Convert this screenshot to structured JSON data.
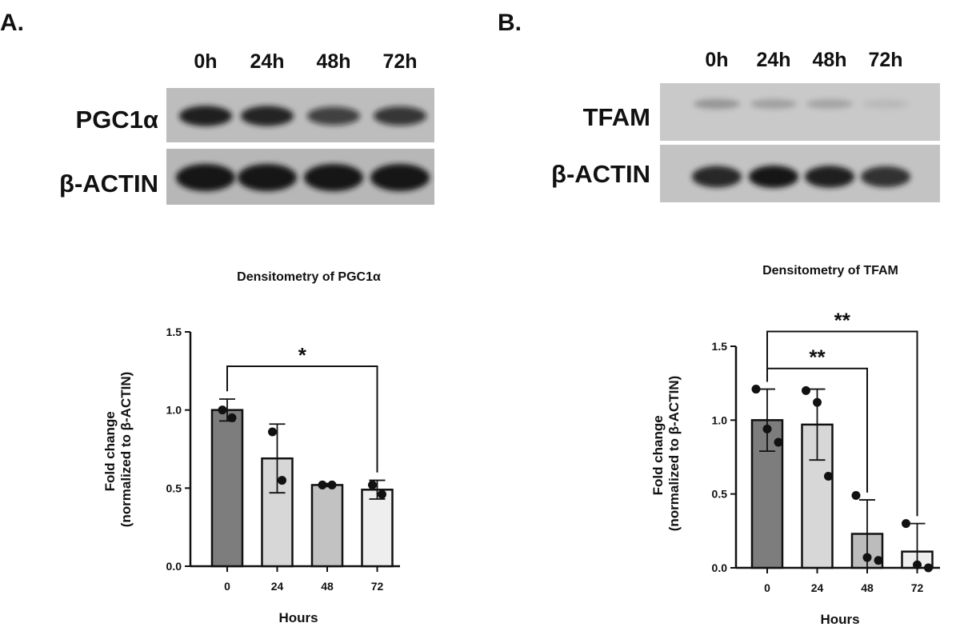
{
  "panels": [
    {
      "label": "A.",
      "blot": {
        "lanes": [
          "0h",
          "24h",
          "48h",
          "72h"
        ],
        "rows": [
          {
            "name": "PGC1α",
            "band_intensity": [
              0.95,
              0.92,
              0.72,
              0.78
            ]
          },
          {
            "name": "β-ACTIN",
            "band_intensity": [
              1.0,
              1.0,
              1.0,
              1.0
            ]
          }
        ]
      }
    },
    {
      "label": "B.",
      "blot": {
        "lanes": [
          "0h",
          "24h",
          "48h",
          "72h"
        ],
        "rows": [
          {
            "name": "TFAM",
            "band_intensity": [
              0.25,
              0.2,
              0.18,
              0.08
            ]
          },
          {
            "name": "β-ACTIN",
            "band_intensity": [
              0.9,
              1.0,
              0.95,
              0.85
            ]
          }
        ]
      }
    }
  ],
  "chart_data": [
    {
      "type": "bar",
      "title": "Densitometry of  PGC1α",
      "xlabel": "Hours",
      "ylabel_lines": [
        "Fold change",
        "(normalized to β-ACTIN)"
      ],
      "categories": [
        "0",
        "24",
        "48",
        "72"
      ],
      "values": [
        1.0,
        0.69,
        0.52,
        0.49
      ],
      "error": [
        0.07,
        0.22,
        0.01,
        0.06
      ],
      "points": [
        [
          1.0,
          0.95
        ],
        [
          0.86,
          0.55
        ],
        [
          0.52,
          0.52
        ],
        [
          0.52,
          0.46
        ]
      ],
      "bar_colors": [
        "#7d7d7d",
        "#d7d7d7",
        "#c2c2c2",
        "#eeeeee"
      ],
      "ylim": [
        0,
        1.5
      ],
      "yticks": [
        "0.0",
        "0.5",
        "1.0",
        "1.5"
      ],
      "significance": [
        {
          "from": 0,
          "to": 3,
          "label": "*",
          "y": 1.28
        }
      ]
    },
    {
      "type": "bar",
      "title": "Densitometry of TFAM",
      "xlabel": "Hours",
      "ylabel_lines": [
        "Fold change",
        "(normalized to β-ACTIN)"
      ],
      "categories": [
        "0",
        "24",
        "48",
        "72"
      ],
      "values": [
        1.0,
        0.97,
        0.23,
        0.11
      ],
      "error": [
        0.21,
        0.24,
        0.23,
        0.19
      ],
      "points": [
        [
          1.21,
          0.94,
          0.85
        ],
        [
          1.2,
          1.12,
          0.62
        ],
        [
          0.49,
          0.07,
          0.05
        ],
        [
          0.3,
          0.02,
          0.0
        ]
      ],
      "bar_colors": [
        "#7d7d7d",
        "#d7d7d7",
        "#bcbcbc",
        "#eeeeee"
      ],
      "ylim": [
        0,
        1.5
      ],
      "yticks": [
        "0.0",
        "0.5",
        "1.0",
        "1.5"
      ],
      "significance": [
        {
          "from": 0,
          "to": 2,
          "label": "**",
          "y": 1.35
        },
        {
          "from": 0,
          "to": 3,
          "label": "**",
          "y": 1.6
        }
      ]
    }
  ]
}
